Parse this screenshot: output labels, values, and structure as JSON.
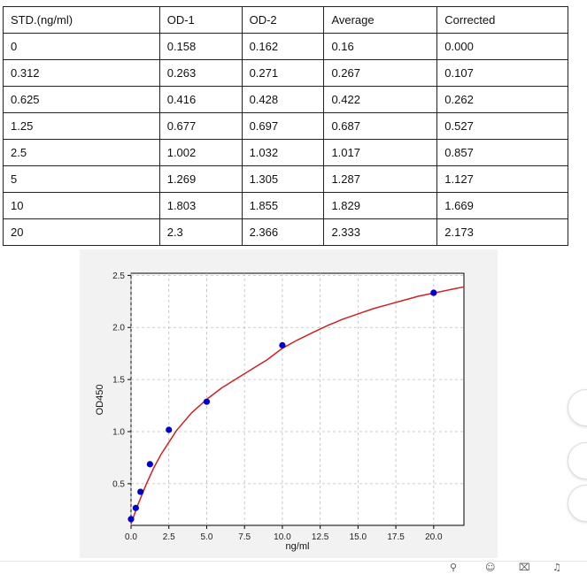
{
  "table": {
    "headers": [
      "STD.(ng/ml)",
      "OD-1",
      "OD-2",
      "Average",
      "Corrected"
    ],
    "rows": [
      [
        "0",
        "0.158",
        "0.162",
        "0.16",
        "0.000"
      ],
      [
        "0.312",
        "0.263",
        "0.271",
        "0.267",
        "0.107"
      ],
      [
        "0.625",
        "0.416",
        "0.428",
        "0.422",
        "0.262"
      ],
      [
        "1.25",
        "0.677",
        "0.697",
        "0.687",
        "0.527"
      ],
      [
        "2.5",
        "1.002",
        "1.032",
        "1.017",
        "0.857"
      ],
      [
        "5",
        "1.269",
        "1.305",
        "1.287",
        "1.127"
      ],
      [
        "10",
        "1.803",
        "1.855",
        "1.829",
        "1.669"
      ],
      [
        "20",
        "2.3",
        "2.366",
        "2.333",
        "2.173"
      ]
    ]
  },
  "chart_data": {
    "type": "scatter",
    "xlabel": "ng/ml",
    "ylabel": "OD450",
    "xlim": [
      0,
      22
    ],
    "ylim": [
      0.1,
      2.52
    ],
    "xticks": [
      "0.0",
      "2.5",
      "5.0",
      "7.5",
      "10.0",
      "12.5",
      "15.0",
      "17.5",
      "20.0"
    ],
    "yticks": [
      "0.5",
      "1.0",
      "1.5",
      "2.0",
      "2.5"
    ],
    "grid": true,
    "points": {
      "x": [
        0,
        0.312,
        0.625,
        1.25,
        2.5,
        5,
        10,
        20
      ],
      "y": [
        0.16,
        0.267,
        0.422,
        0.687,
        1.017,
        1.287,
        1.829,
        2.333
      ],
      "color": "#0000cc"
    },
    "fit_curve": {
      "color": "#cc2222",
      "x": [
        0,
        0.25,
        0.5,
        1,
        1.5,
        2,
        3,
        4,
        5,
        6,
        7,
        8,
        9,
        10,
        11,
        12,
        13,
        14,
        15,
        16,
        17,
        18,
        19,
        20,
        21,
        22
      ],
      "y": [
        0.112,
        0.217,
        0.314,
        0.493,
        0.651,
        0.786,
        1.01,
        1.18,
        1.31,
        1.42,
        1.51,
        1.6,
        1.69,
        1.8,
        1.88,
        1.95,
        2.02,
        2.08,
        2.13,
        2.18,
        2.22,
        2.26,
        2.3,
        2.33,
        2.36,
        2.39
      ]
    }
  },
  "colors": {
    "chart_background": "#f2f2f2",
    "plot_background": "#ffffff"
  }
}
